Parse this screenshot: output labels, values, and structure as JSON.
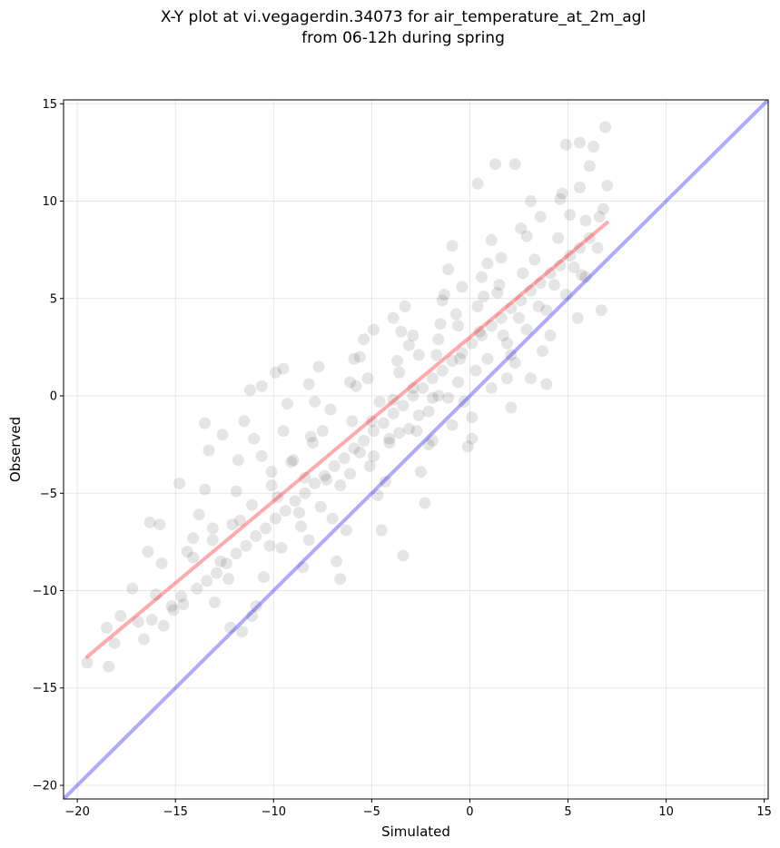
{
  "chart_data": {
    "type": "scatter",
    "title": "X-Y plot at vi.vegagerdin.34073 for air_temperature_at_2m_agl",
    "subtitle": "from 06-12h during spring",
    "xlabel": "Simulated",
    "ylabel": "Observed",
    "xlim": [
      -20.7,
      15.2
    ],
    "ylim": [
      -20.7,
      15.2
    ],
    "xticks": [
      -20,
      -15,
      -10,
      -5,
      0,
      5,
      10,
      15
    ],
    "yticks": [
      -20,
      -15,
      -10,
      -5,
      0,
      5,
      10,
      15
    ],
    "xtick_labels": [
      "−20",
      "−15",
      "−10",
      "−5",
      "0",
      "5",
      "10",
      "15"
    ],
    "ytick_labels": [
      "−20",
      "−15",
      "−10",
      "−5",
      "0",
      "5",
      "10",
      "15"
    ],
    "grid": true,
    "marker_color": "#000000",
    "marker_alpha": 0.1,
    "series": [
      {
        "type": "line",
        "color": "#0000ff",
        "x": [
          -20.7,
          15.2
        ],
        "y": [
          -20.7,
          15.2
        ]
      },
      {
        "type": "line",
        "color": "#ff0000",
        "x": [
          -19.5,
          7.0
        ],
        "y": [
          -13.4,
          8.9
        ]
      },
      {
        "type": "scatter",
        "color": "#000000",
        "points": [
          [
            -19.5,
            -13.7
          ],
          [
            -18.4,
            -13.9
          ],
          [
            -18.1,
            -12.7
          ],
          [
            -18.5,
            -11.9
          ],
          [
            -17.8,
            -11.3
          ],
          [
            -17.2,
            -9.9
          ],
          [
            -16.9,
            -11.6
          ],
          [
            -16.3,
            -6.5
          ],
          [
            -15.8,
            -6.6
          ],
          [
            -16.4,
            -8.0
          ],
          [
            -15.7,
            -8.6
          ],
          [
            -16.0,
            -10.2
          ],
          [
            -15.6,
            -11.8
          ],
          [
            -16.6,
            -12.5
          ],
          [
            -16.2,
            -11.5
          ],
          [
            -15.1,
            -11.0
          ],
          [
            -14.7,
            -10.3
          ],
          [
            -14.4,
            -8.0
          ],
          [
            -14.1,
            -7.3
          ],
          [
            -13.8,
            -6.1
          ],
          [
            -14.8,
            -4.5
          ],
          [
            -13.5,
            -1.4
          ],
          [
            -13.3,
            -2.8
          ],
          [
            -13.5,
            -4.8
          ],
          [
            -13.1,
            -6.8
          ],
          [
            -12.7,
            -8.5
          ],
          [
            -12.3,
            -9.4
          ],
          [
            -13.0,
            -10.6
          ],
          [
            -12.2,
            -11.9
          ],
          [
            -11.1,
            -11.3
          ],
          [
            -11.6,
            -12.1
          ],
          [
            -10.9,
            -10.8
          ],
          [
            -10.5,
            -9.3
          ],
          [
            -10.2,
            -7.7
          ],
          [
            -11.7,
            -6.4
          ],
          [
            -11.9,
            -4.9
          ],
          [
            -11.8,
            -3.3
          ],
          [
            -11.5,
            -1.3
          ],
          [
            -11.0,
            -2.2
          ],
          [
            -11.2,
            0.3
          ],
          [
            -10.6,
            0.5
          ],
          [
            -10.1,
            -3.9
          ],
          [
            -9.8,
            -5.2
          ],
          [
            -9.5,
            -1.8
          ],
          [
            -9.9,
            1.2
          ],
          [
            -9.5,
            1.4
          ],
          [
            -9.3,
            -0.4
          ],
          [
            -9.0,
            -3.3
          ],
          [
            -8.7,
            -6.0
          ],
          [
            -8.5,
            -8.8
          ],
          [
            -8.2,
            -7.4
          ],
          [
            -8.4,
            -4.2
          ],
          [
            -8.0,
            -2.4
          ],
          [
            -7.9,
            -0.3
          ],
          [
            -8.2,
            0.6
          ],
          [
            -7.7,
            1.5
          ],
          [
            -7.5,
            -1.8
          ],
          [
            -7.3,
            -4.3
          ],
          [
            -7.0,
            -6.3
          ],
          [
            -6.8,
            -8.5
          ],
          [
            -6.6,
            -9.4
          ],
          [
            -6.3,
            -6.9
          ],
          [
            -6.1,
            -4.0
          ],
          [
            -6.0,
            -1.3
          ],
          [
            -5.8,
            0.5
          ],
          [
            -5.6,
            2.0
          ],
          [
            -5.4,
            2.9
          ],
          [
            -5.2,
            0.9
          ],
          [
            -5.0,
            -1.3
          ],
          [
            -4.9,
            -3.1
          ],
          [
            -4.7,
            -5.1
          ],
          [
            -4.5,
            -6.9
          ],
          [
            -4.3,
            -4.4
          ],
          [
            -4.1,
            -2.2
          ],
          [
            -3.9,
            -0.2
          ],
          [
            -3.7,
            1.8
          ],
          [
            -3.5,
            3.3
          ],
          [
            -3.3,
            4.6
          ],
          [
            -3.1,
            2.6
          ],
          [
            -2.9,
            0.4
          ],
          [
            -2.7,
            -1.8
          ],
          [
            -2.5,
            -3.9
          ],
          [
            -3.4,
            -8.2
          ],
          [
            -2.3,
            -5.5
          ],
          [
            -2.1,
            -2.5
          ],
          [
            -1.9,
            -0.1
          ],
          [
            -1.7,
            2.1
          ],
          [
            -1.5,
            3.7
          ],
          [
            -1.3,
            5.2
          ],
          [
            -1.1,
            6.5
          ],
          [
            -0.9,
            7.7
          ],
          [
            -0.7,
            4.2
          ],
          [
            -0.5,
            1.9
          ],
          [
            -0.3,
            -0.3
          ],
          [
            -0.1,
            -2.6
          ],
          [
            0.1,
            -1.1
          ],
          [
            0.3,
            1.3
          ],
          [
            0.5,
            3.3
          ],
          [
            0.7,
            5.1
          ],
          [
            0.9,
            6.8
          ],
          [
            1.1,
            8.0
          ],
          [
            1.3,
            11.9
          ],
          [
            0.4,
            10.9
          ],
          [
            1.5,
            5.7
          ],
          [
            1.7,
            3.1
          ],
          [
            1.9,
            0.9
          ],
          [
            2.1,
            -0.6
          ],
          [
            2.3,
            1.7
          ],
          [
            2.5,
            4.0
          ],
          [
            2.7,
            6.3
          ],
          [
            2.9,
            8.2
          ],
          [
            3.1,
            10.0
          ],
          [
            3.3,
            7.0
          ],
          [
            3.5,
            4.6
          ],
          [
            3.7,
            2.3
          ],
          [
            3.9,
            0.6
          ],
          [
            4.1,
            3.1
          ],
          [
            4.3,
            5.7
          ],
          [
            4.5,
            8.1
          ],
          [
            4.7,
            10.4
          ],
          [
            4.9,
            12.9
          ],
          [
            5.1,
            9.3
          ],
          [
            5.3,
            6.6
          ],
          [
            5.5,
            4.0
          ],
          [
            5.7,
            6.2
          ],
          [
            5.9,
            9.0
          ],
          [
            6.1,
            11.8
          ],
          [
            6.3,
            12.8
          ],
          [
            6.5,
            7.6
          ],
          [
            6.7,
            4.4
          ],
          [
            6.8,
            9.6
          ],
          [
            7.0,
            10.8
          ],
          [
            6.9,
            13.8
          ],
          [
            5.6,
            13.0
          ],
          [
            2.3,
            11.9
          ],
          [
            -15.2,
            -10.8
          ],
          [
            -14.6,
            -10.7
          ],
          [
            -13.9,
            -9.9
          ],
          [
            -13.4,
            -9.5
          ],
          [
            -12.9,
            -9.1
          ],
          [
            -12.4,
            -8.6
          ],
          [
            -11.9,
            -8.1
          ],
          [
            -11.4,
            -7.7
          ],
          [
            -10.9,
            -7.2
          ],
          [
            -10.4,
            -6.8
          ],
          [
            -9.9,
            -6.3
          ],
          [
            -9.4,
            -5.9
          ],
          [
            -8.9,
            -5.4
          ],
          [
            -8.4,
            -5.0
          ],
          [
            -7.9,
            -4.5
          ],
          [
            -7.4,
            -4.1
          ],
          [
            -6.9,
            -3.6
          ],
          [
            -6.4,
            -3.2
          ],
          [
            -5.9,
            -2.7
          ],
          [
            -5.4,
            -2.3
          ],
          [
            -4.9,
            -1.8
          ],
          [
            -4.4,
            -1.4
          ],
          [
            -3.9,
            -0.9
          ],
          [
            -3.4,
            -0.5
          ],
          [
            -2.9,
            0.0
          ],
          [
            -2.4,
            0.4
          ],
          [
            -1.9,
            0.9
          ],
          [
            -1.4,
            1.3
          ],
          [
            -0.9,
            1.8
          ],
          [
            -0.4,
            2.2
          ],
          [
            0.1,
            2.7
          ],
          [
            0.6,
            3.1
          ],
          [
            1.1,
            3.6
          ],
          [
            1.6,
            4.0
          ],
          [
            2.1,
            4.5
          ],
          [
            2.6,
            4.9
          ],
          [
            3.1,
            5.4
          ],
          [
            3.6,
            5.8
          ],
          [
            4.1,
            6.3
          ],
          [
            4.6,
            6.7
          ],
          [
            5.1,
            7.2
          ],
          [
            5.6,
            7.6
          ],
          [
            6.1,
            8.1
          ],
          [
            -4.6,
            -0.3
          ],
          [
            -3.6,
            1.2
          ],
          [
            -2.6,
            2.1
          ],
          [
            -1.6,
            2.9
          ],
          [
            -0.6,
            3.6
          ],
          [
            0.4,
            4.6
          ],
          [
            1.4,
            5.3
          ],
          [
            -5.6,
            -2.9
          ],
          [
            -6.6,
            -4.6
          ],
          [
            -7.6,
            -5.7
          ],
          [
            -8.6,
            -6.7
          ],
          [
            -9.6,
            -7.8
          ],
          [
            -3.1,
            -1.7
          ],
          [
            -2.1,
            -0.8
          ],
          [
            -1.1,
            -0.1
          ],
          [
            -4.1,
            -2.4
          ],
          [
            -5.1,
            -3.6
          ],
          [
            1.9,
            2.7
          ],
          [
            2.9,
            3.4
          ],
          [
            3.9,
            4.4
          ],
          [
            4.9,
            5.2
          ],
          [
            5.9,
            6.1
          ],
          [
            -1.6,
            0.0
          ],
          [
            -2.6,
            -1.0
          ],
          [
            -3.6,
            -1.9
          ],
          [
            -0.6,
            0.7
          ],
          [
            0.9,
            1.9
          ],
          [
            -6.1,
            0.7
          ],
          [
            -7.1,
            -0.7
          ],
          [
            -8.1,
            -2.1
          ],
          [
            -9.1,
            -3.4
          ],
          [
            -10.1,
            -4.6
          ],
          [
            -11.1,
            -5.6
          ],
          [
            -12.1,
            -6.6
          ],
          [
            -13.1,
            -7.4
          ],
          [
            -14.1,
            -8.3
          ],
          [
            -12.6,
            -2.0
          ],
          [
            -10.6,
            -3.1
          ],
          [
            -5.9,
            1.9
          ],
          [
            -4.9,
            3.4
          ],
          [
            -3.9,
            4.0
          ],
          [
            -2.9,
            3.1
          ],
          [
            -1.4,
            4.9
          ],
          [
            -0.4,
            5.6
          ],
          [
            0.6,
            6.1
          ],
          [
            1.6,
            7.1
          ],
          [
            2.6,
            8.6
          ],
          [
            3.6,
            9.2
          ],
          [
            4.6,
            10.1
          ],
          [
            5.6,
            10.7
          ],
          [
            6.6,
            9.2
          ],
          [
            3.1,
            0.9
          ],
          [
            2.1,
            2.1
          ],
          [
            1.1,
            0.4
          ],
          [
            0.1,
            -2.2
          ],
          [
            -0.9,
            -1.5
          ],
          [
            -1.9,
            -2.3
          ]
        ]
      }
    ]
  }
}
